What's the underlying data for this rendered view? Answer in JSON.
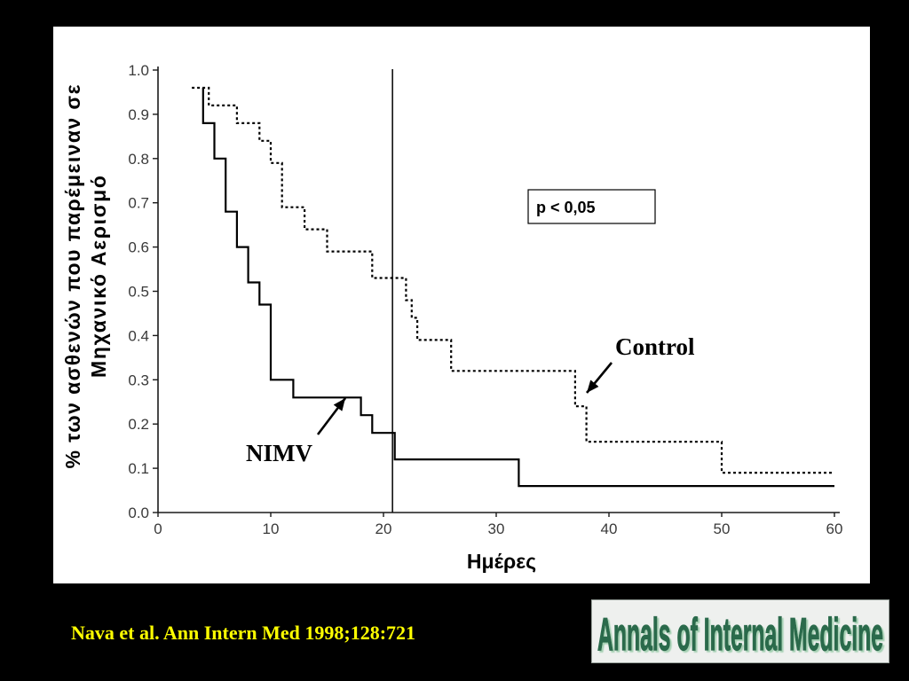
{
  "slide": {
    "background": "#000000",
    "panel_background": "#ffffff",
    "citation": "Nava et al. Ann Intern Med 1998;128:721",
    "citation_color": "#ffff00",
    "logo": {
      "text": "Annals of Internal Medicine",
      "text_color": "#2b6b4c",
      "shadow_color": "#a6d1b4",
      "background": "#eef0ee"
    }
  },
  "chart_data": {
    "type": "line",
    "step": true,
    "xlabel": "Ημέρες",
    "ylabel": [
      "% των ασθενών που παρέμειναν σε",
      "Μηχανικό Αερισμό"
    ],
    "xlim": [
      0,
      60
    ],
    "ylim": [
      0,
      1
    ],
    "grid": false,
    "xticks": [
      {
        "value": 0,
        "label": "0"
      },
      {
        "value": 10,
        "label": "10"
      },
      {
        "value": 20,
        "label": "20"
      },
      {
        "value": 30,
        "label": "30"
      },
      {
        "value": 40,
        "label": "40"
      },
      {
        "value": 50,
        "label": "50"
      },
      {
        "value": 60,
        "label": "60"
      }
    ],
    "yticks": [
      {
        "value": 0.0,
        "label": "0.0"
      },
      {
        "value": 0.1,
        "label": "0.1"
      },
      {
        "value": 0.2,
        "label": "0.2"
      },
      {
        "value": 0.3,
        "label": "0.3"
      },
      {
        "value": 0.4,
        "label": "0.4"
      },
      {
        "value": 0.5,
        "label": "0.5"
      },
      {
        "value": 0.6,
        "label": "0.6"
      },
      {
        "value": 0.7,
        "label": "0.7"
      },
      {
        "value": 0.8,
        "label": "0.8"
      },
      {
        "value": 0.9,
        "label": "0.9"
      },
      {
        "value": 1.0,
        "label": "1.0"
      }
    ],
    "reference_line_x": 20.8,
    "series": [
      {
        "name": "NIMV",
        "dotted": false,
        "color": "#000000",
        "x": [
          4,
          4,
          5,
          6,
          7,
          8,
          9,
          10,
          12,
          18,
          19,
          21,
          32,
          60
        ],
        "y": [
          0.96,
          0.88,
          0.8,
          0.68,
          0.6,
          0.52,
          0.47,
          0.3,
          0.26,
          0.22,
          0.18,
          0.12,
          0.06,
          0.06
        ]
      },
      {
        "name": "Control",
        "dotted": true,
        "color": "#000000",
        "x": [
          3,
          4.5,
          7,
          9,
          10,
          11,
          13,
          15,
          19,
          22,
          22.5,
          23,
          26,
          37,
          38,
          50,
          60
        ],
        "y": [
          0.96,
          0.92,
          0.88,
          0.84,
          0.79,
          0.69,
          0.64,
          0.59,
          0.53,
          0.48,
          0.44,
          0.39,
          0.32,
          0.24,
          0.16,
          0.09,
          0.09
        ]
      }
    ],
    "annotations": [
      {
        "text": "p < 0,05",
        "boxed": true
      }
    ]
  }
}
